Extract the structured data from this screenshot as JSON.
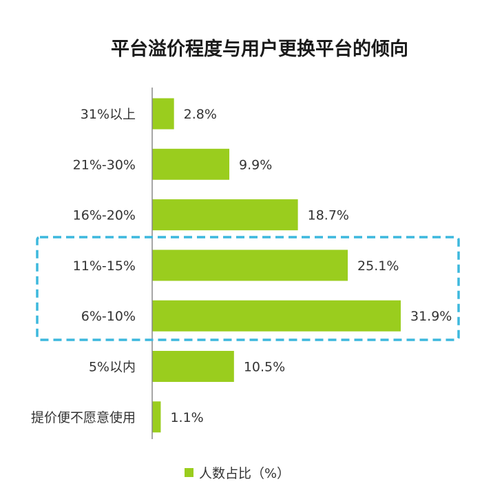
{
  "chart_data": {
    "type": "bar",
    "orientation": "horizontal",
    "title": "平台溢价程度与用户更换平台的倾向",
    "categories": [
      "31%以上",
      "21%-30%",
      "16%-20%",
      "11%-15%",
      "6%-10%",
      "5%以内",
      "提价便不愿意使用"
    ],
    "series": [
      {
        "name": "人数占比（%）",
        "values": [
          2.8,
          9.9,
          18.7,
          25.1,
          31.9,
          10.5,
          1.1
        ],
        "value_labels": [
          "2.8%",
          "9.9%",
          "18.7%",
          "25.1%",
          "31.9%",
          "10.5%",
          "1.1%"
        ]
      }
    ],
    "xlim": [
      0,
      32
    ],
    "grid": false,
    "legend_position": "bottom",
    "highlight": {
      "style": "dashed-box",
      "categories": [
        "11%-15%",
        "6%-10%"
      ],
      "color": "#3db8dd"
    },
    "colors": {
      "bar": "#9acd1e",
      "axis": "#888888",
      "text": "#333333"
    }
  }
}
